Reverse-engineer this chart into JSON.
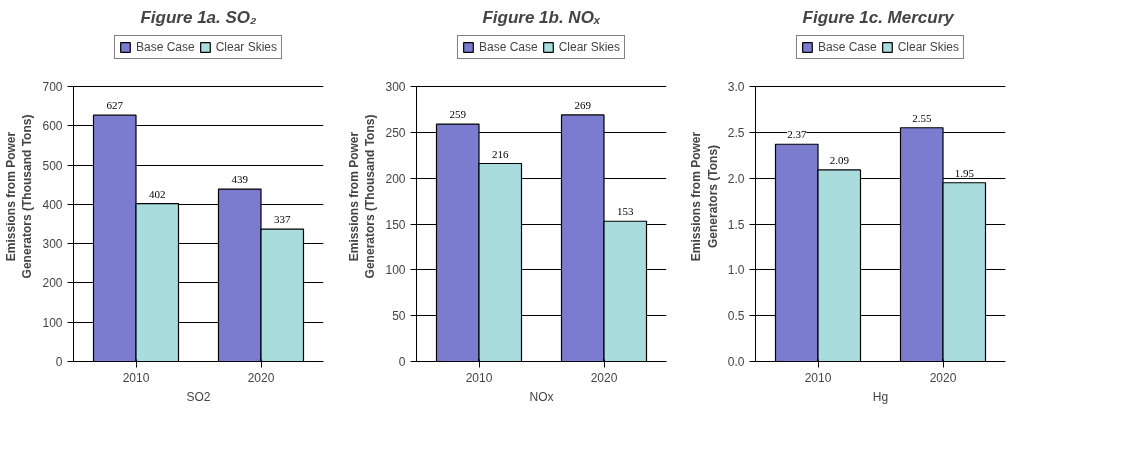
{
  "chart_data": [
    {
      "type": "bar",
      "title": "Figure 1a. SO₂",
      "xlabel": "SO2",
      "ylabel": "Emissions from Power Generators (Thousand Tons)",
      "categories": [
        "2010",
        "2020"
      ],
      "series": [
        {
          "name": "Base Case",
          "color": "#7b7bd0",
          "values": [
            627,
            439
          ]
        },
        {
          "name": "Clear Skies",
          "color": "#a9dcdc",
          "values": [
            402,
            337
          ]
        }
      ],
      "ylim": [
        0,
        700
      ],
      "yticks": [
        0,
        100,
        200,
        300,
        400,
        500,
        600,
        700
      ],
      "grid": "y",
      "legend": "top",
      "data_labels": true
    },
    {
      "type": "bar",
      "title": "Figure 1b. NOₓ",
      "xlabel": "NOx",
      "ylabel": "Emissions from Power Generators (Thousand Tons)",
      "categories": [
        "2010",
        "2020"
      ],
      "series": [
        {
          "name": "Base Case",
          "color": "#7b7bd0",
          "values": [
            259,
            269
          ]
        },
        {
          "name": "Clear Skies",
          "color": "#a9dcdc",
          "values": [
            216,
            153
          ]
        }
      ],
      "ylim": [
        0,
        300
      ],
      "yticks": [
        0,
        50,
        100,
        150,
        200,
        250,
        300
      ],
      "grid": "y",
      "legend": "top",
      "data_labels": true
    },
    {
      "type": "bar",
      "title": "Figure 1c.  Mercury",
      "xlabel": "Hg",
      "ylabel": "Emissions from Power Generators (Tons)",
      "categories": [
        "2010",
        "2020"
      ],
      "series": [
        {
          "name": "Base Case",
          "color": "#7b7bd0",
          "values": [
            2.37,
            2.55
          ]
        },
        {
          "name": "Clear Skies",
          "color": "#a9dcdc",
          "values": [
            2.09,
            1.95
          ]
        }
      ],
      "ylim": [
        0,
        3.0
      ],
      "yticks": [
        {
          "value": 0,
          "label": "0.0"
        },
        {
          "value": 0.5,
          "label": "0.5"
        },
        {
          "value": 1,
          "label": "1.0"
        },
        {
          "value": 1.5,
          "label": "1.5"
        },
        {
          "value": 2,
          "label": "2.0"
        },
        {
          "value": 2.5,
          "label": "2.5"
        },
        {
          "value": 3,
          "label": "3.0"
        }
      ],
      "grid": "y",
      "legend": "top",
      "data_labels": true
    }
  ]
}
